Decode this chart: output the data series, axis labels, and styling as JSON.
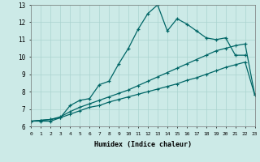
{
  "xlabel": "Humidex (Indice chaleur)",
  "background_color": "#cceae7",
  "grid_color": "#aad4d0",
  "line_color": "#006666",
  "xlim": [
    0,
    23
  ],
  "ylim": [
    6,
    13
  ],
  "xtick_labels": [
    "0",
    "1",
    "2",
    "3",
    "4",
    "5",
    "6",
    "7",
    "8",
    "9",
    "10",
    "11",
    "12",
    "13",
    "14",
    "15",
    "16",
    "17",
    "18",
    "19",
    "20",
    "21",
    "22",
    "23"
  ],
  "ytick_labels": [
    "6",
    "7",
    "8",
    "9",
    "10",
    "11",
    "12",
    "13"
  ],
  "line1_x": [
    0,
    1,
    2,
    3,
    4,
    5,
    6,
    7,
    8,
    9,
    10,
    11,
    12,
    13,
    14,
    15,
    16,
    17,
    18,
    19,
    20,
    21,
    22
  ],
  "line1_y": [
    6.3,
    6.3,
    6.3,
    6.5,
    7.2,
    7.5,
    7.6,
    8.4,
    8.6,
    9.6,
    10.5,
    11.6,
    12.5,
    13.0,
    11.5,
    12.2,
    11.9,
    11.5,
    11.1,
    11.0,
    11.1,
    10.1,
    10.1
  ],
  "line2_x": [
    0,
    1,
    2,
    3,
    4,
    5,
    6,
    7,
    8,
    9,
    10,
    11,
    12,
    13,
    14,
    15,
    16,
    17,
    18,
    19,
    20,
    21,
    22,
    23
  ],
  "line2_y": [
    6.3,
    6.35,
    6.4,
    6.5,
    6.7,
    6.9,
    7.1,
    7.2,
    7.4,
    7.55,
    7.7,
    7.85,
    8.0,
    8.15,
    8.3,
    8.45,
    8.65,
    8.8,
    9.0,
    9.2,
    9.4,
    9.55,
    9.7,
    7.8
  ],
  "line3_x": [
    0,
    1,
    2,
    3,
    4,
    5,
    6,
    7,
    8,
    9,
    10,
    11,
    12,
    13,
    14,
    15,
    16,
    17,
    18,
    19,
    20,
    21,
    22,
    23
  ],
  "line3_y": [
    6.3,
    6.35,
    6.4,
    6.55,
    6.85,
    7.1,
    7.3,
    7.5,
    7.7,
    7.9,
    8.1,
    8.35,
    8.6,
    8.85,
    9.1,
    9.35,
    9.6,
    9.85,
    10.1,
    10.35,
    10.5,
    10.65,
    10.75,
    7.8
  ]
}
